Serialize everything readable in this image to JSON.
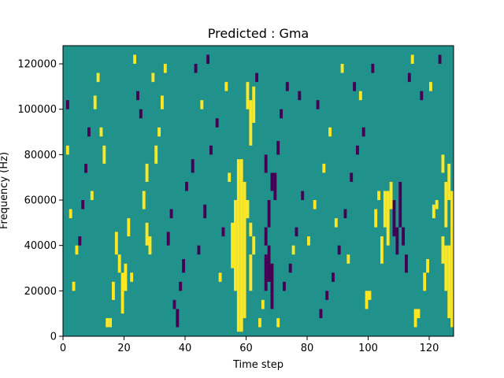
{
  "chart_data": {
    "type": "heatmap",
    "title": "Predicted : Gma",
    "xlabel": "Time step",
    "ylabel": "Frequency (Hz)",
    "xlim": [
      0,
      128
    ],
    "ylim": [
      0,
      128000
    ],
    "x_ticks": [
      0,
      20,
      40,
      60,
      80,
      100,
      120
    ],
    "y_ticks": [
      0,
      20000,
      40000,
      60000,
      80000,
      100000,
      120000
    ],
    "x_tick_labels": [
      "0",
      "20",
      "40",
      "60",
      "80",
      "100",
      "120"
    ],
    "y_tick_labels": [
      "0",
      "20000",
      "40000",
      "60000",
      "80000",
      "100000",
      "120000"
    ],
    "grid": false,
    "colors": {
      "background": "#21918c",
      "high": "#fde725",
      "low": "#440154"
    },
    "rows": 64,
    "row_height_hz": 2000,
    "background_value": 0,
    "cells_legend": "cells are [time_step, row_start, row_count, value] where value 1 = high (yellow), -1 = low (purple); all other cells are background",
    "cells": [
      [
        57,
        1,
        38,
        1
      ],
      [
        58,
        1,
        38,
        1
      ],
      [
        59,
        4,
        30,
        1
      ],
      [
        56,
        10,
        20,
        1
      ],
      [
        55,
        15,
        10,
        1
      ],
      [
        61,
        10,
        8,
        1
      ],
      [
        62,
        18,
        4,
        1
      ],
      [
        60,
        50,
        6,
        1
      ],
      [
        61,
        42,
        10,
        1
      ],
      [
        62,
        47,
        8,
        1
      ],
      [
        60,
        26,
        4,
        1
      ],
      [
        61,
        22,
        3,
        1
      ],
      [
        66,
        10,
        8,
        -1
      ],
      [
        67,
        12,
        8,
        -1
      ],
      [
        68,
        6,
        10,
        -1
      ],
      [
        66,
        20,
        4,
        -1
      ],
      [
        67,
        24,
        6,
        -1
      ],
      [
        69,
        30,
        6,
        -1
      ],
      [
        68,
        32,
        4,
        -1
      ],
      [
        66,
        36,
        4,
        -1
      ],
      [
        127,
        2,
        30,
        1
      ],
      [
        126,
        4,
        16,
        1
      ],
      [
        125,
        10,
        10,
        1
      ],
      [
        124,
        16,
        6,
        1
      ],
      [
        125,
        24,
        10,
        1
      ],
      [
        126,
        30,
        8,
        1
      ],
      [
        124,
        36,
        4,
        1
      ],
      [
        19,
        5,
        9,
        1
      ],
      [
        20,
        10,
        6,
        1
      ],
      [
        18,
        14,
        4,
        1
      ],
      [
        17,
        18,
        5,
        1
      ],
      [
        21,
        22,
        4,
        1
      ],
      [
        27,
        20,
        5,
        1
      ],
      [
        28,
        18,
        4,
        1
      ],
      [
        26,
        28,
        4,
        1
      ],
      [
        27,
        34,
        4,
        1
      ],
      [
        14,
        2,
        2,
        1
      ],
      [
        15,
        2,
        2,
        1
      ],
      [
        16,
        8,
        4,
        1
      ],
      [
        22,
        12,
        2,
        1
      ],
      [
        106,
        20,
        12,
        1
      ],
      [
        105,
        24,
        8,
        1
      ],
      [
        107,
        28,
        6,
        1
      ],
      [
        104,
        16,
        6,
        1
      ],
      [
        108,
        22,
        8,
        -1
      ],
      [
        109,
        18,
        6,
        -1
      ],
      [
        110,
        24,
        10,
        -1
      ],
      [
        111,
        20,
        4,
        -1
      ],
      [
        112,
        14,
        4,
        -1
      ],
      [
        102,
        24,
        4,
        1
      ],
      [
        103,
        30,
        2,
        1
      ],
      [
        100,
        8,
        2,
        1
      ],
      [
        99,
        6,
        4,
        1
      ],
      [
        115,
        2,
        4,
        1
      ],
      [
        116,
        4,
        2,
        1
      ],
      [
        118,
        10,
        4,
        1
      ],
      [
        119,
        14,
        3,
        1
      ],
      [
        121,
        26,
        3,
        1
      ],
      [
        122,
        28,
        2,
        1
      ],
      [
        13,
        38,
        4,
        1
      ],
      [
        12,
        44,
        2,
        1
      ],
      [
        11,
        56,
        2,
        1
      ],
      [
        10,
        50,
        3,
        1
      ],
      [
        30,
        38,
        4,
        1
      ],
      [
        31,
        44,
        2,
        1
      ],
      [
        32,
        50,
        3,
        1
      ],
      [
        33,
        58,
        2,
        1
      ],
      [
        36,
        6,
        2,
        -1
      ],
      [
        37,
        2,
        4,
        -1
      ],
      [
        38,
        10,
        2,
        -1
      ],
      [
        39,
        14,
        3,
        -1
      ],
      [
        34,
        20,
        3,
        -1
      ],
      [
        35,
        26,
        2,
        -1
      ],
      [
        40,
        32,
        2,
        -1
      ],
      [
        42,
        36,
        3,
        -1
      ],
      [
        44,
        18,
        2,
        -1
      ],
      [
        46,
        26,
        3,
        -1
      ],
      [
        48,
        40,
        2,
        -1
      ],
      [
        50,
        46,
        2,
        -1
      ],
      [
        72,
        10,
        2,
        -1
      ],
      [
        74,
        14,
        2,
        -1
      ],
      [
        76,
        22,
        2,
        -1
      ],
      [
        78,
        30,
        2,
        -1
      ],
      [
        70,
        40,
        3,
        -1
      ],
      [
        71,
        48,
        2,
        -1
      ],
      [
        73,
        54,
        2,
        -1
      ],
      [
        64,
        2,
        2,
        1
      ],
      [
        65,
        6,
        2,
        1
      ],
      [
        70,
        2,
        2,
        1
      ],
      [
        75,
        18,
        2,
        1
      ],
      [
        84,
        4,
        2,
        -1
      ],
      [
        86,
        8,
        2,
        -1
      ],
      [
        88,
        12,
        2,
        -1
      ],
      [
        90,
        18,
        2,
        -1
      ],
      [
        92,
        26,
        2,
        -1
      ],
      [
        94,
        34,
        2,
        -1
      ],
      [
        96,
        40,
        2,
        -1
      ],
      [
        80,
        20,
        2,
        1
      ],
      [
        82,
        28,
        2,
        1
      ],
      [
        85,
        36,
        2,
        1
      ],
      [
        87,
        44,
        2,
        1
      ],
      [
        5,
        20,
        2,
        -1
      ],
      [
        6,
        28,
        2,
        -1
      ],
      [
        7,
        36,
        2,
        -1
      ],
      [
        8,
        44,
        2,
        -1
      ],
      [
        3,
        10,
        2,
        1
      ],
      [
        4,
        18,
        2,
        1
      ],
      [
        2,
        26,
        2,
        1
      ],
      [
        9,
        30,
        2,
        1
      ],
      [
        24,
        52,
        2,
        -1
      ],
      [
        25,
        48,
        2,
        -1
      ],
      [
        43,
        58,
        2,
        -1
      ],
      [
        47,
        60,
        2,
        -1
      ],
      [
        63,
        56,
        2,
        -1
      ],
      [
        77,
        52,
        2,
        -1
      ],
      [
        83,
        50,
        2,
        -1
      ],
      [
        95,
        54,
        2,
        -1
      ],
      [
        101,
        58,
        2,
        -1
      ],
      [
        113,
        56,
        2,
        -1
      ],
      [
        117,
        52,
        2,
        -1
      ],
      [
        123,
        60,
        2,
        -1
      ],
      [
        53,
        54,
        2,
        1
      ],
      [
        45,
        50,
        2,
        1
      ],
      [
        29,
        56,
        2,
        1
      ],
      [
        23,
        60,
        2,
        1
      ],
      [
        91,
        58,
        2,
        1
      ],
      [
        97,
        52,
        2,
        1
      ],
      [
        114,
        60,
        2,
        1
      ],
      [
        120,
        54,
        2,
        1
      ],
      [
        1,
        40,
        2,
        1
      ],
      [
        1,
        50,
        2,
        -1
      ],
      [
        51,
        12,
        2,
        1
      ],
      [
        52,
        22,
        2,
        -1
      ],
      [
        54,
        34,
        2,
        1
      ],
      [
        89,
        24,
        2,
        1
      ],
      [
        93,
        16,
        2,
        1
      ],
      [
        98,
        44,
        2,
        -1
      ]
    ]
  }
}
